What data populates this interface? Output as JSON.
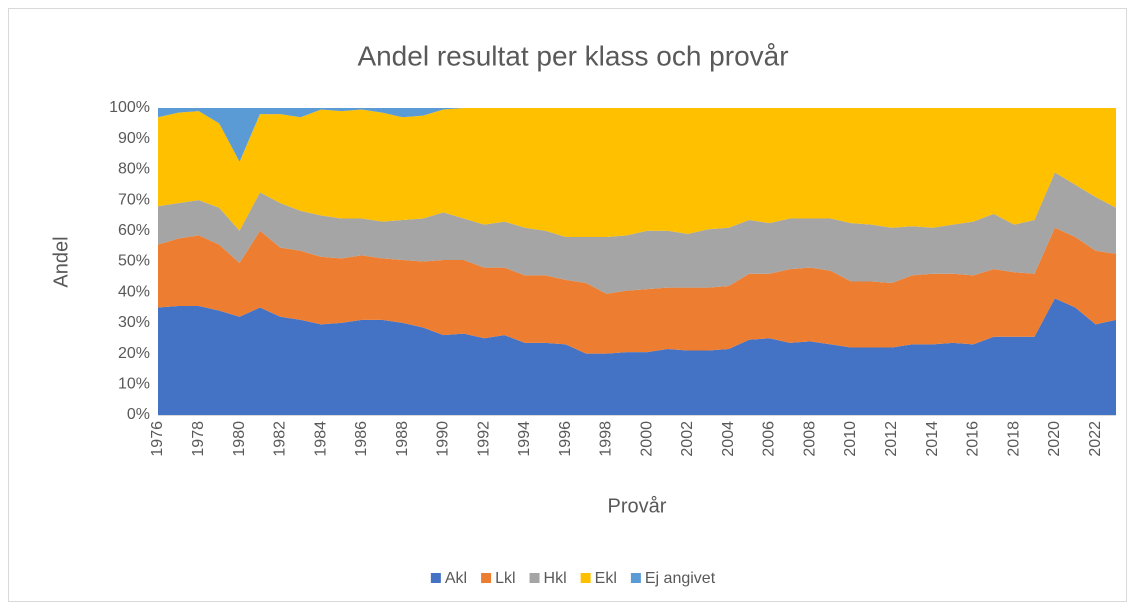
{
  "chart_data": {
    "type": "stacked_area",
    "title": "Andel resultat per klass och provår",
    "x_label": "Provår",
    "y_label": "Andel",
    "categories": [
      "1976",
      null,
      "1978",
      null,
      "1980",
      null,
      "1982",
      null,
      "1984",
      null,
      "1986",
      null,
      "1988",
      null,
      "1990",
      null,
      "1992",
      null,
      "1994",
      null,
      "1996",
      null,
      "1998",
      null,
      "2000",
      null,
      "2002",
      null,
      "2004",
      null,
      "2006",
      null,
      "2008",
      null,
      "2010",
      null,
      "2012",
      null,
      "2014",
      null,
      "2016",
      null,
      "2018",
      null,
      "2020",
      null,
      "2022",
      null
    ],
    "series": [
      {
        "name": "Akl",
        "color": "#4472c4",
        "values": [
          35,
          35.5,
          35.5,
          34,
          32,
          35,
          32,
          31,
          29.5,
          30,
          31,
          31,
          30,
          28.5,
          26,
          26.5,
          25,
          26,
          23.5,
          23.5,
          23,
          20,
          20,
          20.5,
          20.5,
          21.5,
          21,
          21,
          21.5,
          24.5,
          25,
          23.5,
          24,
          23,
          22,
          22,
          22,
          23,
          23,
          23.5,
          23,
          25.5,
          25.5,
          25.5,
          38,
          35,
          29.5,
          31
        ]
      },
      {
        "name": "Lkl",
        "color": "#ed7d31",
        "values": [
          20.5,
          22,
          23,
          21.5,
          17.5,
          25,
          22.5,
          22.5,
          22,
          21,
          21,
          20,
          20.5,
          21.5,
          24.5,
          24,
          23,
          22,
          22,
          22,
          21,
          23,
          19.5,
          20,
          20.5,
          20,
          20.5,
          20.5,
          20.5,
          21.5,
          21,
          24,
          24,
          24,
          21.5,
          21.5,
          21,
          22.5,
          23,
          22.5,
          22.5,
          22,
          21,
          20.5,
          23,
          23,
          24,
          21.5
        ]
      },
      {
        "name": "Hkl",
        "color": "#a5a5a5",
        "values": [
          12.5,
          11.5,
          11.5,
          12,
          10.5,
          12.5,
          14.5,
          13,
          13.5,
          13,
          12,
          12,
          13,
          14,
          15.5,
          13.5,
          14,
          15,
          15.5,
          14.5,
          14,
          15,
          18.5,
          18,
          19,
          18.5,
          17.5,
          19,
          19,
          17.5,
          16.5,
          16.5,
          16,
          17,
          19,
          18.5,
          18,
          16,
          15,
          16,
          17.5,
          18,
          15.5,
          17.5,
          18,
          17,
          17.5,
          15
        ]
      },
      {
        "name": "Ekl",
        "color": "#ffc000",
        "values": [
          29,
          29.5,
          29,
          27.5,
          22.5,
          25.5,
          29,
          30.5,
          34.5,
          35,
          35.5,
          35.5,
          33.5,
          33.5,
          33.5,
          36,
          38,
          37,
          39,
          40,
          42,
          42,
          42,
          41.5,
          40,
          40,
          41,
          39.5,
          39,
          36.5,
          37.5,
          36,
          36,
          36,
          37.5,
          38,
          39,
          38.5,
          39,
          38,
          37,
          34.5,
          38,
          36.5,
          21,
          25,
          29,
          32.5
        ]
      },
      {
        "name": "Ej angivet",
        "color": "#5b9bd5",
        "values": [
          3,
          1.5,
          1,
          5,
          17.5,
          2,
          2,
          3,
          0.5,
          1,
          0.5,
          1.5,
          3,
          2.5,
          0.5,
          0,
          0,
          0,
          0,
          0,
          0,
          0,
          0,
          0,
          0,
          0,
          0,
          0,
          0,
          0,
          0,
          0,
          0,
          0,
          0,
          0,
          0,
          0,
          0,
          0,
          0,
          0,
          0,
          0,
          0,
          0,
          0,
          0
        ]
      }
    ],
    "ylim": [
      0,
      100
    ],
    "yticks": [
      {
        "value": 0,
        "label": "0%"
      },
      {
        "value": 10,
        "label": "10%"
      },
      {
        "value": 20,
        "label": "20%"
      },
      {
        "value": 30,
        "label": "30%"
      },
      {
        "value": 40,
        "label": "40%"
      },
      {
        "value": 50,
        "label": "50%"
      },
      {
        "value": 60,
        "label": "60%"
      },
      {
        "value": 70,
        "label": "70%"
      },
      {
        "value": 80,
        "label": "80%"
      },
      {
        "value": 90,
        "label": "90%"
      },
      {
        "value": 100,
        "label": "100%"
      }
    ],
    "grid": false,
    "legend": "bottom"
  }
}
